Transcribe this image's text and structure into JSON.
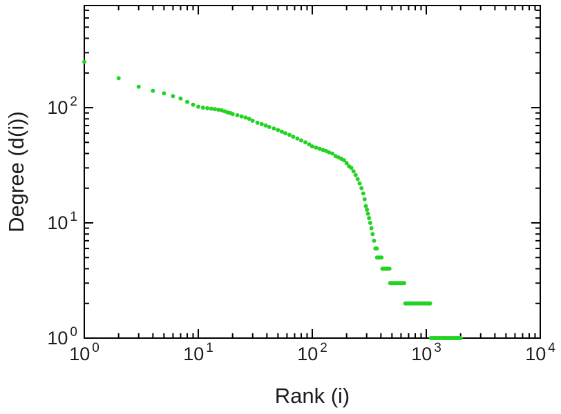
{
  "chart_data": {
    "type": "scatter",
    "title": "",
    "xlabel": "Rank (i)",
    "ylabel": "Degree (d(i))",
    "x_scale": "log",
    "y_scale": "log",
    "xlim": [
      1,
      10000
    ],
    "ylim": [
      1,
      770
    ],
    "x_tick_labels": [
      "10^0",
      "10^1",
      "10^2",
      "10^3",
      "10^4"
    ],
    "y_tick_labels": [
      "10^0",
      "10^1",
      "10^2"
    ],
    "grid": false,
    "legend": null,
    "marker": {
      "color": "#23d323",
      "radius": 3,
      "shape": "circle"
    },
    "frame_color": "#000000",
    "label_color": "#1c1c1c",
    "points": [
      [
        1,
        250
      ],
      [
        2,
        180
      ],
      [
        3,
        152
      ],
      [
        4,
        140
      ],
      [
        5,
        133
      ],
      [
        6,
        126
      ],
      [
        7,
        120
      ],
      [
        8,
        112
      ],
      [
        9,
        106
      ],
      [
        10,
        102
      ],
      [
        11,
        100
      ],
      [
        12,
        99
      ],
      [
        13,
        98
      ],
      [
        14,
        97
      ],
      [
        15,
        96
      ],
      [
        16,
        95
      ],
      [
        17,
        93
      ],
      [
        18,
        91
      ],
      [
        19,
        90
      ],
      [
        20,
        88
      ],
      [
        22,
        86
      ],
      [
        24,
        84
      ],
      [
        26,
        82
      ],
      [
        28,
        80
      ],
      [
        30,
        77
      ],
      [
        33,
        74
      ],
      [
        36,
        72
      ],
      [
        39,
        70
      ],
      [
        42,
        68
      ],
      [
        46,
        66
      ],
      [
        50,
        64
      ],
      [
        54,
        62
      ],
      [
        58,
        60
      ],
      [
        63,
        58
      ],
      [
        68,
        56
      ],
      [
        74,
        54
      ],
      [
        80,
        52
      ],
      [
        87,
        50
      ],
      [
        94,
        48
      ],
      [
        100,
        46
      ],
      [
        108,
        45
      ],
      [
        116,
        44
      ],
      [
        124,
        43
      ],
      [
        132,
        42
      ],
      [
        140,
        41
      ],
      [
        150,
        40
      ],
      [
        160,
        38
      ],
      [
        170,
        37
      ],
      [
        180,
        36
      ],
      [
        190,
        35
      ],
      [
        200,
        33
      ],
      [
        210,
        31
      ],
      [
        220,
        30
      ],
      [
        230,
        28
      ],
      [
        240,
        26
      ],
      [
        250,
        24
      ],
      [
        260,
        22
      ],
      [
        270,
        20
      ],
      [
        280,
        18
      ],
      [
        288,
        16
      ],
      [
        295,
        14
      ],
      [
        302,
        13
      ],
      [
        308,
        12
      ],
      [
        315,
        11
      ],
      [
        322,
        10
      ],
      [
        330,
        9
      ],
      [
        338,
        8
      ],
      [
        348,
        7
      ],
      [
        358,
        6
      ],
      [
        368,
        6
      ]
    ],
    "tail_runs": [
      {
        "degree": 5,
        "rank_start": 370,
        "rank_end": 405
      },
      {
        "degree": 4,
        "rank_start": 412,
        "rank_end": 475
      },
      {
        "degree": 3,
        "rank_start": 482,
        "rank_end": 640
      },
      {
        "degree": 2,
        "rank_start": 655,
        "rank_end": 1080
      },
      {
        "degree": 1,
        "rank_start": 1100,
        "rank_end": 2000
      }
    ]
  }
}
